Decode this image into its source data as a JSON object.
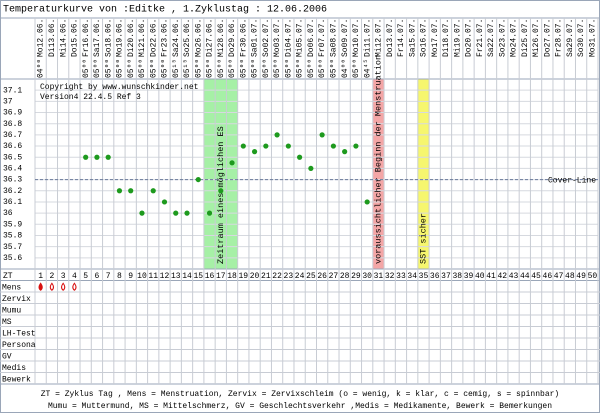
{
  "chart_data": {
    "type": "line",
    "title": "Temperaturkurve von :Editke , 1.Zyklustag : 12.06.2006",
    "copyright": "Copyright by www.wunschkinder.net",
    "version": "Version4 22.4.5 Ref 3",
    "categories": [
      "Mo12.06.",
      "Di13.06.",
      "Mi14.06.",
      "Do15.06.",
      "Fr16.06.",
      "Sa17.06.",
      "So18.06.",
      "Mo19.06.",
      "Di20.06.",
      "Mi21.06.",
      "Do22.06.",
      "Fr23.06.",
      "Sa24.06.",
      "So25.06.",
      "Mo26.06.",
      "Di27.06.",
      "Mi28.06.",
      "Do29.06.",
      "Fr30.06.",
      "Sa01.07.",
      "So02.07.",
      "Mo03.07.",
      "Di04.07.",
      "Mi05.07.",
      "Do06.07.",
      "Fr07.07.",
      "Sa08.07.",
      "So09.07.",
      "Mo10.07.",
      "Di11.07.",
      "Mi12.07.",
      "Do13.07.",
      "Fr14.07.",
      "Sa15.07.",
      "So16.07.",
      "Mo17.07.",
      "Di18.07.",
      "Mi19.07.",
      "Do20.07.",
      "Fr21.07.",
      "Sa22.07.",
      "So23.07.",
      "Mo24.07.",
      "Di25.07.",
      "Mi26.07.",
      "Do27.07.",
      "Fr28.07.",
      "Sa29.07.",
      "So30.07.",
      "Mo31.07."
    ],
    "times": [
      "04⁰⁰",
      null,
      null,
      null,
      "05⁰⁰",
      "05⁰⁰",
      "05⁰⁰",
      "05⁰⁰",
      "05⁰⁰",
      "05⁰⁰",
      "05⁰⁰",
      "05⁰⁰",
      "05¹⁵",
      "05¹⁵",
      "05⁰⁰",
      "05⁰⁰",
      "05⁰⁰",
      "05⁰⁰",
      "05⁰⁰",
      "05⁰⁰",
      "05⁰⁰",
      "05⁰⁰",
      "05⁰⁰",
      "05⁰⁰",
      "05⁰⁰",
      "05⁰⁰",
      "05⁰⁰",
      "04⁰⁰",
      "05⁰⁰",
      "04⁴⁵",
      null,
      null,
      null,
      null,
      null,
      null,
      null,
      null,
      null,
      null,
      null,
      null,
      null,
      null,
      null,
      null,
      null,
      null,
      null,
      null
    ],
    "zt_label": "ZT",
    "zt": [
      1,
      2,
      3,
      4,
      5,
      6,
      7,
      8,
      9,
      10,
      11,
      12,
      13,
      14,
      15,
      16,
      17,
      18,
      19,
      20,
      21,
      22,
      23,
      24,
      25,
      26,
      27,
      28,
      29,
      30,
      31,
      32,
      33,
      34,
      35,
      36,
      37,
      38,
      39,
      40,
      41,
      42,
      43,
      44,
      45,
      46,
      47,
      48,
      49,
      50
    ],
    "green_days": [
      6,
      7,
      13,
      14,
      20,
      21,
      27,
      28,
      34,
      35,
      41,
      42,
      48,
      49
    ],
    "green_color": "#22a022",
    "values": [
      null,
      null,
      null,
      null,
      36.5,
      36.5,
      36.5,
      36.2,
      36.2,
      36.0,
      36.2,
      36.1,
      36.0,
      36.0,
      36.3,
      36.0,
      36.2,
      36.45,
      36.6,
      36.55,
      36.6,
      36.7,
      36.6,
      36.5,
      36.4,
      36.7,
      36.6,
      36.55,
      36.6,
      36.1,
      null,
      null,
      null,
      null,
      null,
      null,
      null,
      null,
      null,
      null,
      null,
      null,
      null,
      null,
      null,
      null,
      null,
      null,
      null,
      null
    ],
    "color": "#1e9a1e",
    "ylim": [
      35.5,
      37.2
    ],
    "yticks": [
      35.6,
      35.7,
      35.8,
      35.9,
      36.0,
      36.1,
      36.2,
      36.3,
      36.4,
      36.5,
      36.6,
      36.7,
      36.8,
      36.9,
      37.0,
      37.1
    ],
    "grid": true,
    "cover_line": {
      "value": 36.3,
      "label": "Cover-Line"
    },
    "zones": [
      {
        "from": 16,
        "to": 18,
        "color": "#a6f0a6",
        "label": "Zeitraum eines möglichen ES"
      },
      {
        "from": 31,
        "to": 31,
        "color": "#f4a6a6",
        "label": "voraussichtlicher Beginn der Menstruation"
      },
      {
        "from": 35,
        "to": 35,
        "color": "#f6f66e",
        "label": "SST sicher"
      }
    ],
    "rows": [
      "Mens",
      "Zervix",
      "Mumu",
      "MS",
      "LH-Test",
      "Persona",
      "GV",
      "Medis",
      "Bewerk"
    ],
    "mens": {
      "days": [
        1,
        2,
        3,
        4
      ],
      "filled": [
        true,
        false,
        false,
        false
      ],
      "color": "#d81010"
    },
    "footer": [
      "ZT = Zyklus Tag , Mens = Menstruation, Zervix = Zervixschleim (o = wenig, k = klar, c = cemig, s = spinnbar)",
      "Mumu = Muttermund, MS = Mittelschmerz, GV = Geschlechtsverkehr ,Medis = Medikamente, Bewerk = Bemerkungen"
    ]
  }
}
